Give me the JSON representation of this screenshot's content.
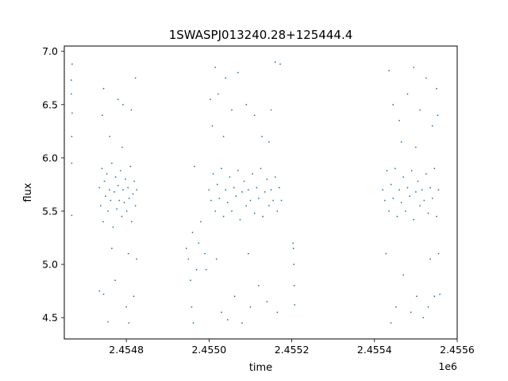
{
  "chart_data": {
    "type": "scatter",
    "title": "1SWASPJ013240.28+125444.4",
    "xlabel": "time",
    "ylabel": "flux",
    "x_offset_label": "1e6",
    "xlim": [
      2454650,
      2455600
    ],
    "ylim": [
      4.3,
      7.05
    ],
    "x_ticks": [
      2454800,
      2455000,
      2455200,
      2455400,
      2455600
    ],
    "x_tick_labels": [
      "2.4548",
      "2.4550",
      "2.4552",
      "2.4554",
      "2.4556"
    ],
    "y_ticks": [
      4.5,
      5.0,
      5.5,
      6.0,
      6.5,
      7.0
    ],
    "y_tick_labels": [
      "4.5",
      "5.0",
      "5.5",
      "6.0",
      "6.5",
      "7.0"
    ],
    "grid": false,
    "marker_color": "#1f77b4",
    "series": [
      {
        "points": [
          [
            2454667,
            6.73
          ],
          [
            2454667,
            6.6
          ],
          [
            2454668,
            6.2
          ],
          [
            2454668,
            5.95
          ],
          [
            2454668,
            5.46
          ],
          [
            2454669,
            6.88
          ],
          [
            2454669,
            6.42
          ],
          [
            2454735,
            5.72
          ],
          [
            2454738,
            5.55
          ],
          [
            2454741,
            5.9
          ],
          [
            2454744,
            5.4
          ],
          [
            2454747,
            5.78
          ],
          [
            2454750,
            5.64
          ],
          [
            2454753,
            5.85
          ],
          [
            2454756,
            5.5
          ],
          [
            2454759,
            5.7
          ],
          [
            2454762,
            5.6
          ],
          [
            2454765,
            5.95
          ],
          [
            2454768,
            5.35
          ],
          [
            2454771,
            5.68
          ],
          [
            2454774,
            5.82
          ],
          [
            2454777,
            5.52
          ],
          [
            2454780,
            5.74
          ],
          [
            2454783,
            5.6
          ],
          [
            2454786,
            5.88
          ],
          [
            2454789,
            5.45
          ],
          [
            2454792,
            5.7
          ],
          [
            2454795,
            5.58
          ],
          [
            2454798,
            5.8
          ],
          [
            2454801,
            5.5
          ],
          [
            2454804,
            5.72
          ],
          [
            2454807,
            5.62
          ],
          [
            2454810,
            5.92
          ],
          [
            2454813,
            5.4
          ],
          [
            2454816,
            5.66
          ],
          [
            2454819,
            5.78
          ],
          [
            2454822,
            5.55
          ],
          [
            2454825,
            5.7
          ],
          [
            2454742,
            6.4
          ],
          [
            2454745,
            6.65
          ],
          [
            2454756,
            4.46
          ],
          [
            2454760,
            6.2
          ],
          [
            2454773,
            4.85
          ],
          [
            2454780,
            6.55
          ],
          [
            2454792,
            6.5
          ],
          [
            2454800,
            4.6
          ],
          [
            2454806,
            4.45
          ],
          [
            2454812,
            6.45
          ],
          [
            2454818,
            4.7
          ],
          [
            2454822,
            6.75
          ],
          [
            2454735,
            4.75
          ],
          [
            2454745,
            4.72
          ],
          [
            2454805,
            5.1
          ],
          [
            2454765,
            5.15
          ],
          [
            2454790,
            6.1
          ],
          [
            2454825,
            5.05
          ],
          [
            2454945,
            5.15
          ],
          [
            2454950,
            5.05
          ],
          [
            2454955,
            4.85
          ],
          [
            2454958,
            4.6
          ],
          [
            2454960,
            5.3
          ],
          [
            2454962,
            4.45
          ],
          [
            2454965,
            5.92
          ],
          [
            2454970,
            4.95
          ],
          [
            2454975,
            5.2
          ],
          [
            2454980,
            5.4
          ],
          [
            2454990,
            5.1
          ],
          [
            2454993,
            4.95
          ],
          [
            2455000,
            5.7
          ],
          [
            2455005,
            5.6
          ],
          [
            2455010,
            5.85
          ],
          [
            2455015,
            5.5
          ],
          [
            2455020,
            5.75
          ],
          [
            2455025,
            5.62
          ],
          [
            2455030,
            5.9
          ],
          [
            2455035,
            5.45
          ],
          [
            2455040,
            5.7
          ],
          [
            2455045,
            5.58
          ],
          [
            2455050,
            5.82
          ],
          [
            2455055,
            5.5
          ],
          [
            2455060,
            5.72
          ],
          [
            2455065,
            5.64
          ],
          [
            2455070,
            5.88
          ],
          [
            2455075,
            5.42
          ],
          [
            2455080,
            5.68
          ],
          [
            2455085,
            5.78
          ],
          [
            2455090,
            5.55
          ],
          [
            2455095,
            5.7
          ],
          [
            2455100,
            5.6
          ],
          [
            2455105,
            5.85
          ],
          [
            2455110,
            5.48
          ],
          [
            2455115,
            5.72
          ],
          [
            2455120,
            5.62
          ],
          [
            2455125,
            5.9
          ],
          [
            2455130,
            5.45
          ],
          [
            2455135,
            5.68
          ],
          [
            2455140,
            5.8
          ],
          [
            2455145,
            5.55
          ],
          [
            2455150,
            5.7
          ],
          [
            2455155,
            5.6
          ],
          [
            2455160,
            5.82
          ],
          [
            2455165,
            5.5
          ],
          [
            2455170,
            5.72
          ],
          [
            2455175,
            5.6
          ],
          [
            2455003,
            6.55
          ],
          [
            2455008,
            6.3
          ],
          [
            2455015,
            6.85
          ],
          [
            2455022,
            6.6
          ],
          [
            2455030,
            4.55
          ],
          [
            2455040,
            6.75
          ],
          [
            2455045,
            4.48
          ],
          [
            2455055,
            6.45
          ],
          [
            2455062,
            4.7
          ],
          [
            2455070,
            6.8
          ],
          [
            2455080,
            4.45
          ],
          [
            2455090,
            6.5
          ],
          [
            2455100,
            4.6
          ],
          [
            2455110,
            6.4
          ],
          [
            2455120,
            4.8
          ],
          [
            2455128,
            6.2
          ],
          [
            2455140,
            4.65
          ],
          [
            2455150,
            6.45
          ],
          [
            2455160,
            6.9
          ],
          [
            2455165,
            4.55
          ],
          [
            2455172,
            6.88
          ],
          [
            2455018,
            5.05
          ],
          [
            2455035,
            6.2
          ],
          [
            2455095,
            5.1
          ],
          [
            2455145,
            6.15
          ],
          [
            2455203,
            5.2
          ],
          [
            2455205,
            5.0
          ],
          [
            2455206,
            4.8
          ],
          [
            2455207,
            4.62
          ],
          [
            2455204,
            5.15
          ],
          [
            2455420,
            5.7
          ],
          [
            2455425,
            5.6
          ],
          [
            2455430,
            5.88
          ],
          [
            2455435,
            5.5
          ],
          [
            2455440,
            5.75
          ],
          [
            2455445,
            5.62
          ],
          [
            2455450,
            5.9
          ],
          [
            2455455,
            5.45
          ],
          [
            2455460,
            5.7
          ],
          [
            2455465,
            5.58
          ],
          [
            2455470,
            5.82
          ],
          [
            2455475,
            5.5
          ],
          [
            2455480,
            5.72
          ],
          [
            2455485,
            5.64
          ],
          [
            2455490,
            5.88
          ],
          [
            2455495,
            5.42
          ],
          [
            2455500,
            5.68
          ],
          [
            2455505,
            5.78
          ],
          [
            2455510,
            5.55
          ],
          [
            2455515,
            5.7
          ],
          [
            2455520,
            5.6
          ],
          [
            2455525,
            5.85
          ],
          [
            2455530,
            5.48
          ],
          [
            2455535,
            5.72
          ],
          [
            2455540,
            5.62
          ],
          [
            2455545,
            5.9
          ],
          [
            2455550,
            5.45
          ],
          [
            2455555,
            5.7
          ],
          [
            2455435,
            6.82
          ],
          [
            2455440,
            4.45
          ],
          [
            2455445,
            6.5
          ],
          [
            2455452,
            4.6
          ],
          [
            2455460,
            6.35
          ],
          [
            2455470,
            4.9
          ],
          [
            2455480,
            6.6
          ],
          [
            2455488,
            4.55
          ],
          [
            2455495,
            6.85
          ],
          [
            2455502,
            4.7
          ],
          [
            2455510,
            6.45
          ],
          [
            2455518,
            4.5
          ],
          [
            2455525,
            6.75
          ],
          [
            2455530,
            4.6
          ],
          [
            2455540,
            6.3
          ],
          [
            2455545,
            4.7
          ],
          [
            2455550,
            6.65
          ],
          [
            2455555,
            5.1
          ],
          [
            2455558,
            4.72
          ],
          [
            2455553,
            6.4
          ],
          [
            2455428,
            5.1
          ],
          [
            2455500,
            6.1
          ],
          [
            2455535,
            5.05
          ],
          [
            2455465,
            6.15
          ]
        ]
      }
    ]
  }
}
